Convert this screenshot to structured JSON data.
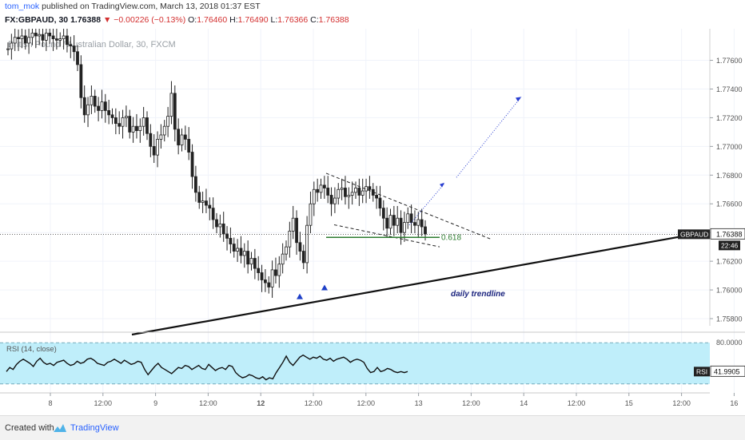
{
  "header": {
    "user": "tom_mok",
    "published_text": "published on TradingView.com, March 13, 2018 01:37 EST",
    "symbol": "FX:GBPAUD, 30",
    "last": "1.76388",
    "change": "−0.00226 (−0.13%)",
    "o_label": "O:",
    "o_value": "1.76460",
    "h_label": "H:",
    "h_value": "1.76490",
    "l_label": "L:",
    "l_value": "1.76366",
    "c_label": "C:",
    "c_value": "1.76388",
    "colors": {
      "down": "#d32f2f",
      "brand": "#2962ff"
    }
  },
  "chart_data": [
    {
      "type": "candlestick",
      "title": "British Pound / Australian Dollar, 30, FXCM",
      "ylim": [
        1.7575,
        1.7782
      ],
      "y_ticks": [
        "1.77600",
        "1.77400",
        "1.77200",
        "1.77000",
        "1.76800",
        "1.76600",
        "1.76400",
        "1.76200",
        "1.76000",
        "1.75800"
      ],
      "x_ticks": [
        "8",
        "12:00",
        "9",
        "12:00",
        "12",
        "12:00",
        "12:00",
        "13",
        "12:00",
        "14",
        "12:00",
        "15",
        "12:00",
        "16"
      ],
      "price_label": {
        "symbol": "GBPAUD",
        "value": "1.76388",
        "countdown": "22:46"
      },
      "price_line": 1.76388,
      "close_series": [
        1.7768,
        1.7772,
        1.7776,
        1.7775,
        1.7777,
        1.7772,
        1.7776,
        1.7779,
        1.7777,
        1.7778,
        1.7774,
        1.7779,
        1.7777,
        1.7775,
        1.7774,
        1.7775,
        1.7777,
        1.7771,
        1.777,
        1.7766,
        1.7757,
        1.7734,
        1.7722,
        1.7729,
        1.7735,
        1.7728,
        1.7725,
        1.7731,
        1.7725,
        1.7722,
        1.772,
        1.7716,
        1.7714,
        1.772,
        1.7721,
        1.771,
        1.7714,
        1.7711,
        1.7714,
        1.772,
        1.7709,
        1.77,
        1.7694,
        1.7705,
        1.7708,
        1.7714,
        1.7721,
        1.7737,
        1.7712,
        1.7701,
        1.7708,
        1.7705,
        1.7696,
        1.7679,
        1.7668,
        1.7661,
        1.7662,
        1.7659,
        1.7657,
        1.7649,
        1.7644,
        1.7646,
        1.7639,
        1.7636,
        1.7632,
        1.7627,
        1.7629,
        1.7624,
        1.7627,
        1.7618,
        1.7622,
        1.7615,
        1.7612,
        1.7607,
        1.7605,
        1.7602,
        1.7614,
        1.761,
        1.7618,
        1.7625,
        1.763,
        1.7641,
        1.765,
        1.7633,
        1.7627,
        1.7619,
        1.7645,
        1.766,
        1.767,
        1.7668,
        1.7673,
        1.7671,
        1.7666,
        1.766,
        1.7664,
        1.767,
        1.7671,
        1.7665,
        1.7666,
        1.7668,
        1.7671,
        1.7666,
        1.7669,
        1.7672,
        1.767,
        1.7666,
        1.7664,
        1.7657,
        1.765,
        1.7643,
        1.7652,
        1.7645,
        1.765,
        1.764,
        1.7647,
        1.7653,
        1.7647,
        1.7645,
        1.7649,
        1.7644,
        1.7639
      ],
      "annotations": {
        "fib_label": "0.618",
        "fib_level": 1.76366,
        "trendline_label": "daily trendline",
        "resistance_line": [
          [
            1.76813
          ],
          [
            1.76352
          ]
        ],
        "support_line": [
          [
            1.76454
          ],
          [
            1.763
          ]
        ]
      },
      "rsi": {
        "label": "RSI (14, close)",
        "ylim": [
          0,
          100
        ],
        "y_tick": "80.0000",
        "band": [
          30,
          70
        ],
        "value_label": "RSI",
        "value": "41.9905",
        "series": [
          42,
          46,
          44,
          49,
          52,
          54,
          52,
          50,
          47,
          52,
          55,
          51,
          49,
          50,
          48,
          51,
          52,
          53,
          50,
          48,
          49,
          52,
          50,
          51,
          54,
          55,
          53,
          50,
          49,
          48,
          51,
          52,
          54,
          52,
          50,
          53,
          51,
          49,
          50,
          52,
          51,
          44,
          39,
          43,
          47,
          50,
          46,
          44,
          42,
          40,
          43,
          46,
          45,
          48,
          47,
          44,
          46,
          48,
          45,
          44,
          49,
          46,
          43,
          45,
          46,
          44,
          48,
          47,
          41,
          38,
          36,
          37,
          39,
          38,
          36,
          35,
          37,
          34,
          36,
          35,
          41,
          46,
          51,
          57,
          51,
          48,
          52,
          56,
          58,
          56,
          54,
          56,
          55,
          57,
          54,
          53,
          55,
          52,
          54,
          55,
          56,
          54,
          51,
          53,
          54,
          53,
          51,
          45,
          41,
          42,
          46,
          42,
          43,
          45,
          44,
          42,
          41,
          42,
          41,
          42
        ]
      }
    }
  ],
  "footer": {
    "created_with": "Created with",
    "brand": "TradingView"
  }
}
